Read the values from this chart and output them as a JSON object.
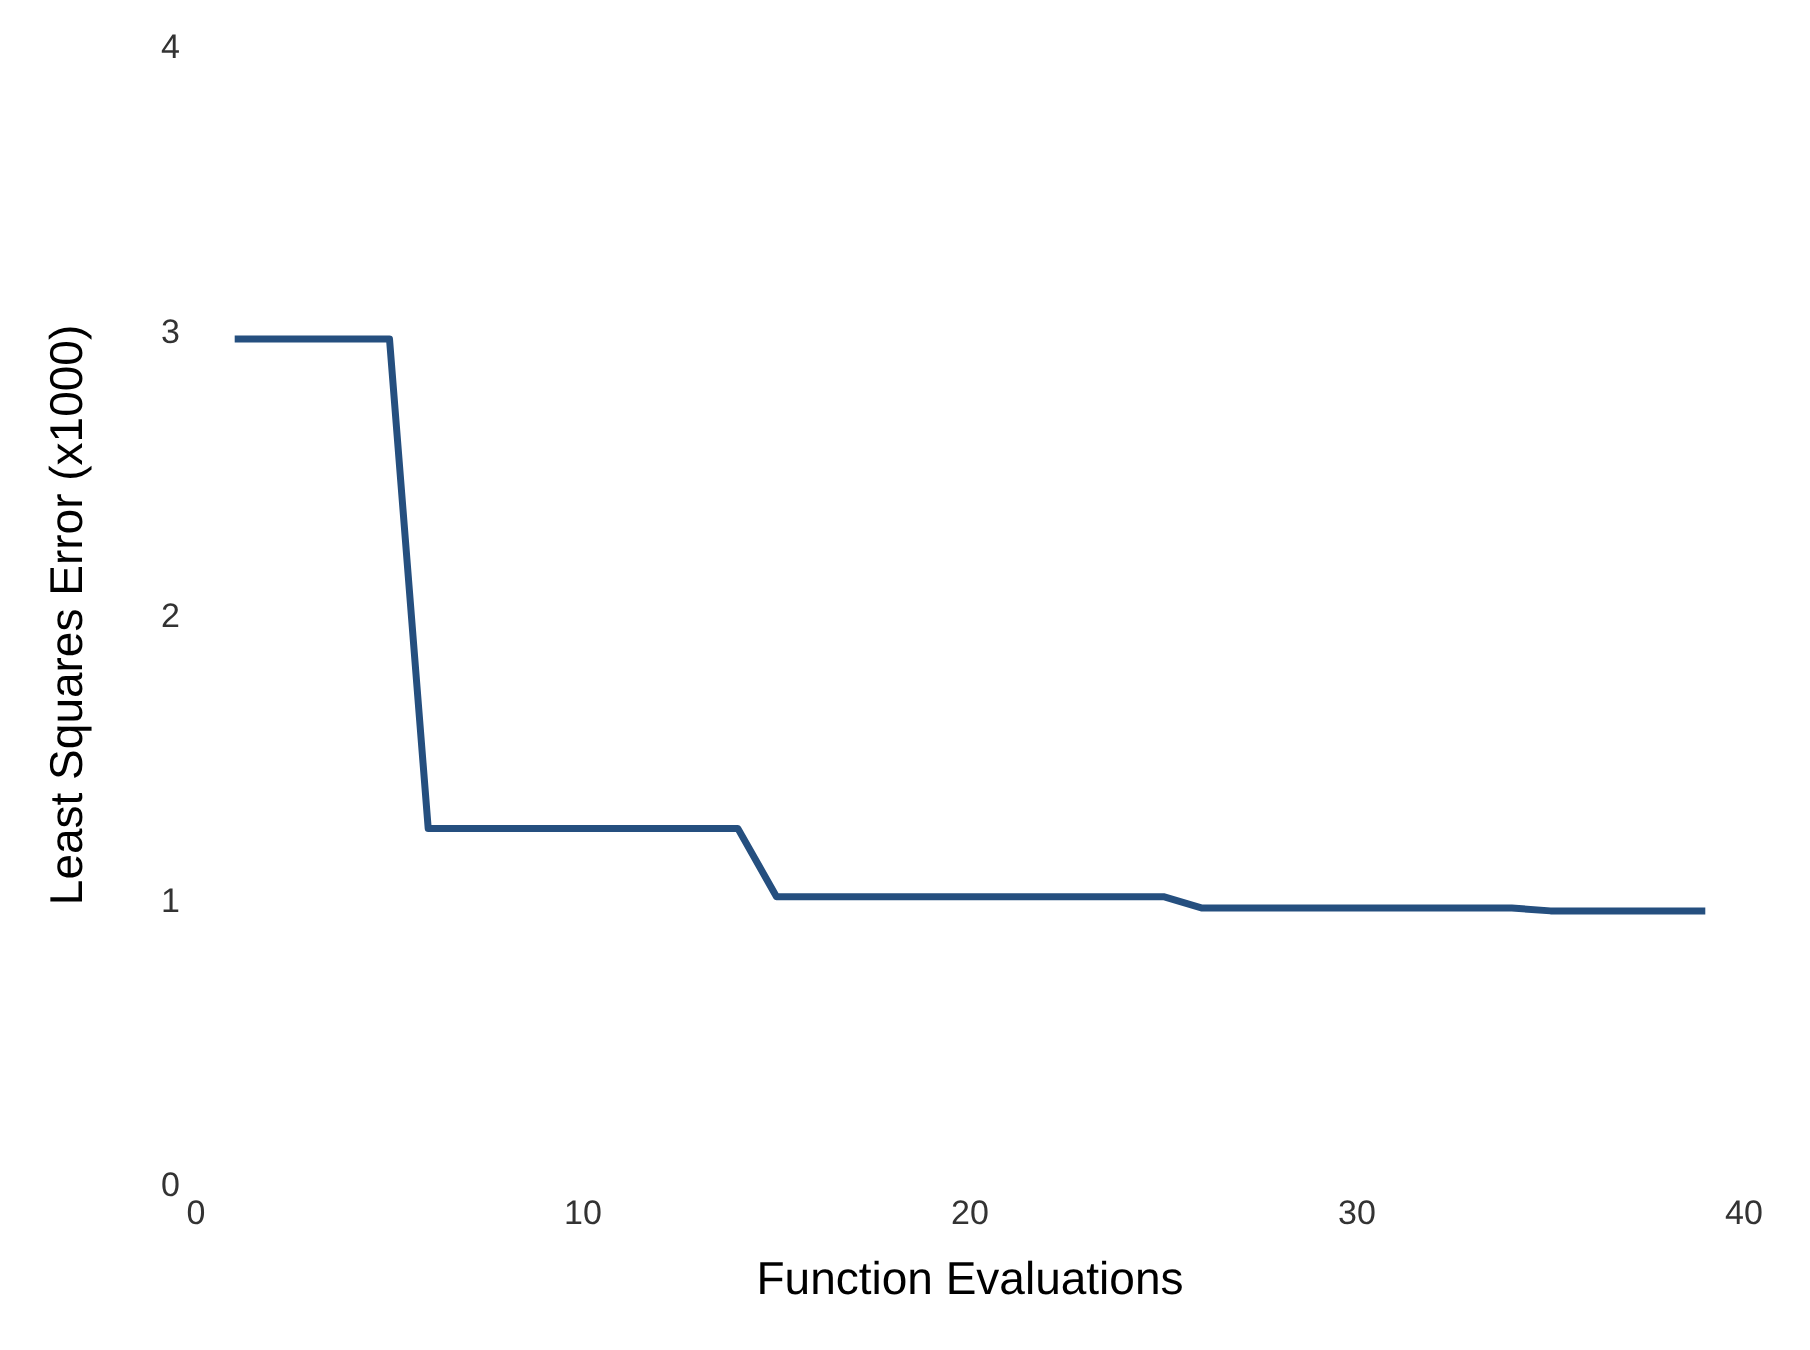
{
  "chart_data": {
    "type": "line",
    "xlabel": "Function Evaluations",
    "ylabel": "Least Squares Error (x1000)",
    "x": [
      1,
      5,
      6,
      14,
      15,
      25,
      26,
      34,
      35,
      39
    ],
    "series": [
      {
        "color": "#254f7f",
        "values": [
          2.97,
          2.97,
          1.25,
          1.25,
          1.01,
          1.01,
          0.97,
          0.97,
          0.96,
          0.96
        ]
      }
    ],
    "xlim": [
      0,
      40
    ],
    "xticks": [
      0,
      10,
      20,
      30,
      40
    ],
    "ylim": [
      0,
      4
    ],
    "yticks": [
      0,
      1,
      2,
      3,
      4
    ],
    "grid": false,
    "legend": false,
    "marker": "none",
    "line_style": "solid"
  }
}
